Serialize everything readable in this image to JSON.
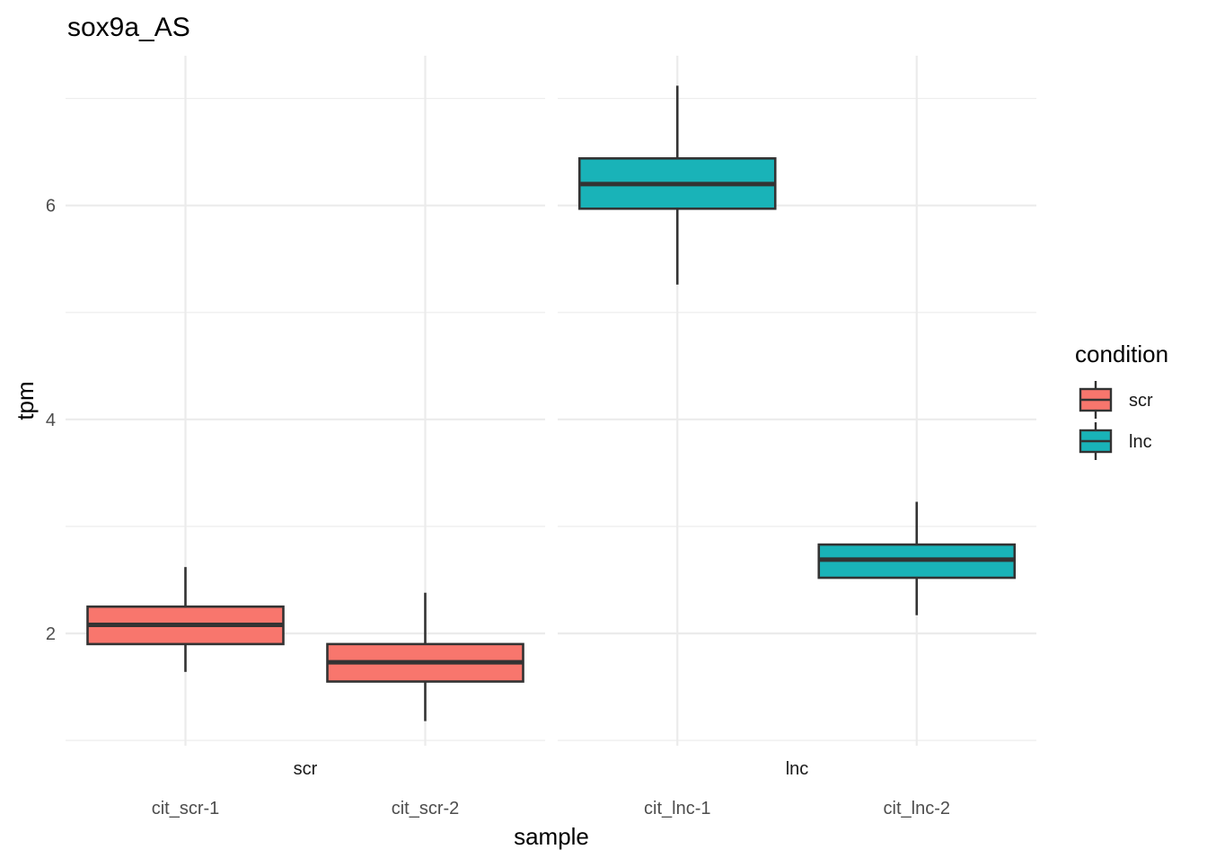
{
  "chart_data": {
    "type": "boxplot",
    "title": "sox9a_AS",
    "xlabel": "sample",
    "ylabel": "tpm",
    "ylim": [
      0.95,
      7.4
    ],
    "y_major_ticks": [
      2,
      4,
      6
    ],
    "y_minor_ticks": [
      1,
      3,
      5,
      7
    ],
    "grid": true,
    "legend_position": "right",
    "legend": {
      "title": "condition",
      "entries": [
        {
          "label": "scr",
          "color": "#F8766D"
        },
        {
          "label": "lnc",
          "color": "#19B3B8"
        }
      ]
    },
    "facets": [
      {
        "label": "scr",
        "categories": [
          "cit_scr-1",
          "cit_scr-2"
        ],
        "boxes": [
          {
            "sample": "cit_scr-1",
            "condition": "scr",
            "lower_whisker": 1.64,
            "q1": 1.9,
            "median": 2.08,
            "q3": 2.25,
            "upper_whisker": 2.62
          },
          {
            "sample": "cit_scr-2",
            "condition": "scr",
            "lower_whisker": 1.18,
            "q1": 1.55,
            "median": 1.73,
            "q3": 1.9,
            "upper_whisker": 2.38
          }
        ]
      },
      {
        "label": "lnc",
        "categories": [
          "cit_lnc-1",
          "cit_lnc-2"
        ],
        "boxes": [
          {
            "sample": "cit_lnc-1",
            "condition": "lnc",
            "lower_whisker": 5.26,
            "q1": 5.97,
            "median": 6.2,
            "q3": 6.44,
            "upper_whisker": 7.12
          },
          {
            "sample": "cit_lnc-2",
            "condition": "lnc",
            "lower_whisker": 2.17,
            "q1": 2.52,
            "median": 2.69,
            "q3": 2.83,
            "upper_whisker": 3.23
          }
        ]
      }
    ],
    "colors": {
      "scr": "#F8766D",
      "lnc": "#19B3B8",
      "outline": "#333333"
    }
  }
}
